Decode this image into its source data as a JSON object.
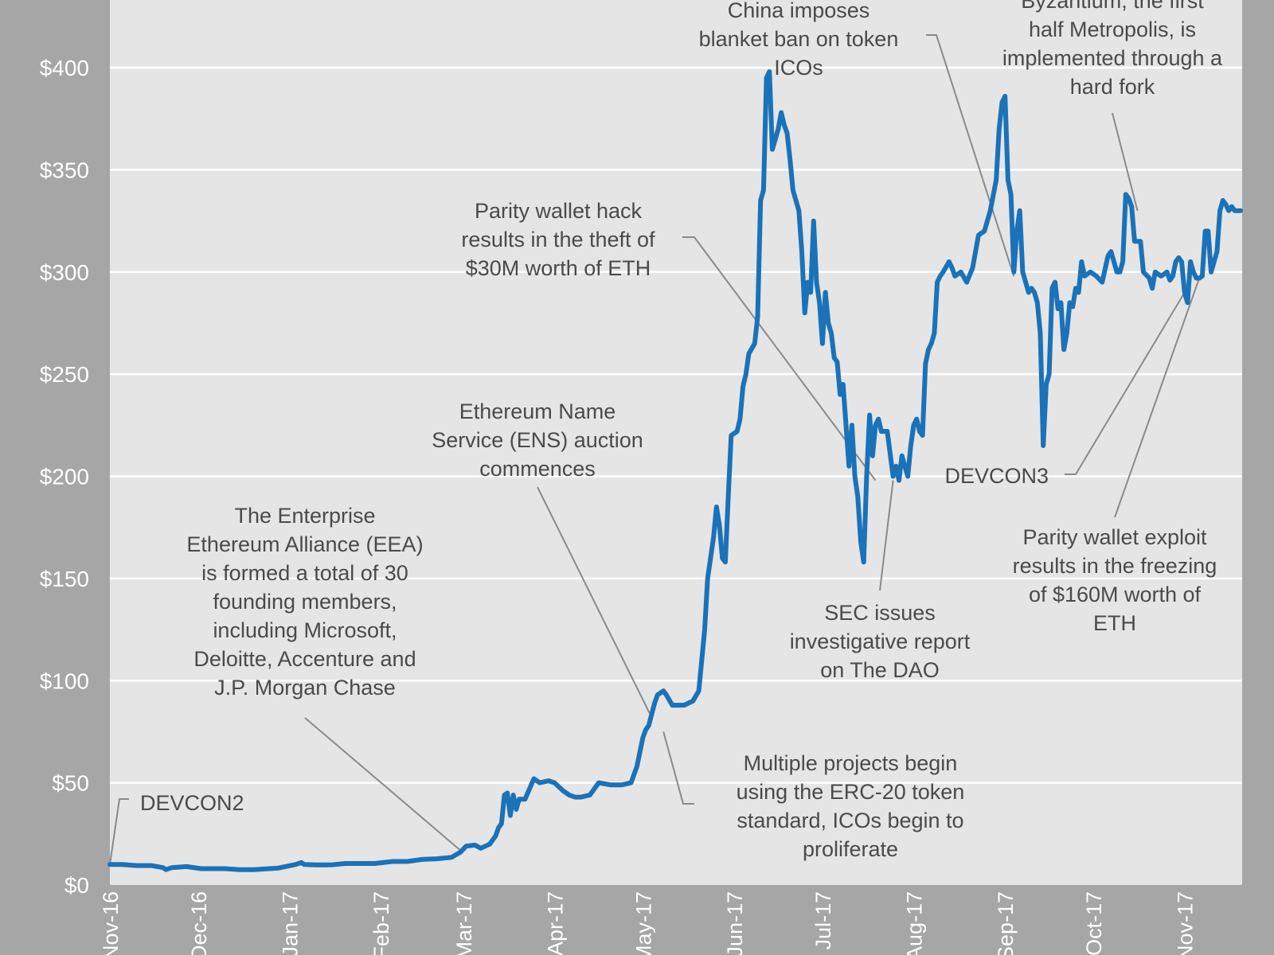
{
  "chart_data": {
    "type": "line",
    "title": "",
    "xlabel": "",
    "ylabel": "",
    "ylim": [
      0,
      430
    ],
    "xlim": [
      "2016-11-01",
      "2017-11-20"
    ],
    "grid": true,
    "yticks": [
      {
        "value": 0,
        "label": "$0"
      },
      {
        "value": 50,
        "label": "$50"
      },
      {
        "value": 100,
        "label": "$100"
      },
      {
        "value": 150,
        "label": "$150"
      },
      {
        "value": 200,
        "label": "$200"
      },
      {
        "value": 250,
        "label": "$250"
      },
      {
        "value": 300,
        "label": "$300"
      },
      {
        "value": 350,
        "label": "$350"
      },
      {
        "value": 400,
        "label": "$400"
      }
    ],
    "xticks": [
      {
        "date": "2016-11-01",
        "label": "Nov-16"
      },
      {
        "date": "2016-12-01",
        "label": "Dec-16"
      },
      {
        "date": "2017-01-01",
        "label": "Jan-17"
      },
      {
        "date": "2017-02-01",
        "label": "Feb-17"
      },
      {
        "date": "2017-03-01",
        "label": "Mar-17"
      },
      {
        "date": "2017-04-01",
        "label": "Apr-17"
      },
      {
        "date": "2017-05-01",
        "label": "May-17"
      },
      {
        "date": "2017-06-01",
        "label": "Jun-17"
      },
      {
        "date": "2017-07-01",
        "label": "Jul-17"
      },
      {
        "date": "2017-08-01",
        "label": "Aug-17"
      },
      {
        "date": "2017-09-01",
        "label": "Sep-17"
      },
      {
        "date": "2017-10-01",
        "label": "Oct-17"
      },
      {
        "date": "2017-11-01",
        "label": "Nov-17"
      }
    ],
    "series": [
      {
        "color": "#1a72b8",
        "points": [
          [
            "2016-11-01",
            10
          ],
          [
            "2016-11-05",
            10
          ],
          [
            "2016-11-10",
            9.5
          ],
          [
            "2016-11-15",
            9.5
          ],
          [
            "2016-11-19",
            8.5
          ],
          [
            "2016-11-20",
            7.5
          ],
          [
            "2016-11-22",
            8.5
          ],
          [
            "2016-11-27",
            9
          ],
          [
            "2016-12-02",
            8
          ],
          [
            "2016-12-10",
            8
          ],
          [
            "2016-12-15",
            7.5
          ],
          [
            "2016-12-20",
            7.5
          ],
          [
            "2016-12-25",
            8
          ],
          [
            "2016-12-28",
            8.2
          ],
          [
            "2017-01-03",
            10
          ],
          [
            "2017-01-05",
            11
          ],
          [
            "2017-01-06",
            10
          ],
          [
            "2017-01-10",
            9.8
          ],
          [
            "2017-01-15",
            9.8
          ],
          [
            "2017-01-20",
            10.5
          ],
          [
            "2017-01-25",
            10.5
          ],
          [
            "2017-01-30",
            10.5
          ],
          [
            "2017-02-05",
            11.5
          ],
          [
            "2017-02-10",
            11.5
          ],
          [
            "2017-02-15",
            12.5
          ],
          [
            "2017-02-20",
            12.8
          ],
          [
            "2017-02-25",
            13.5
          ],
          [
            "2017-02-28",
            16
          ],
          [
            "2017-03-02",
            19
          ],
          [
            "2017-03-05",
            19.5
          ],
          [
            "2017-03-07",
            18
          ],
          [
            "2017-03-10",
            20
          ],
          [
            "2017-03-12",
            24
          ],
          [
            "2017-03-13",
            28
          ],
          [
            "2017-03-14",
            30
          ],
          [
            "2017-03-15",
            44
          ],
          [
            "2017-03-16",
            45
          ],
          [
            "2017-03-17",
            34
          ],
          [
            "2017-03-18",
            44
          ],
          [
            "2017-03-19",
            37
          ],
          [
            "2017-03-20",
            42
          ],
          [
            "2017-03-22",
            42
          ],
          [
            "2017-03-25",
            52
          ],
          [
            "2017-03-27",
            50
          ],
          [
            "2017-03-30",
            51
          ],
          [
            "2017-04-01",
            50
          ],
          [
            "2017-04-04",
            46
          ],
          [
            "2017-04-06",
            44
          ],
          [
            "2017-04-08",
            43
          ],
          [
            "2017-04-10",
            43
          ],
          [
            "2017-04-13",
            44
          ],
          [
            "2017-04-16",
            50
          ],
          [
            "2017-04-20",
            49
          ],
          [
            "2017-04-24",
            49
          ],
          [
            "2017-04-27",
            50
          ],
          [
            "2017-04-29",
            58
          ],
          [
            "2017-05-01",
            72
          ],
          [
            "2017-05-02",
            76
          ],
          [
            "2017-05-03",
            78
          ],
          [
            "2017-05-05",
            89
          ],
          [
            "2017-05-06",
            93
          ],
          [
            "2017-05-08",
            95
          ],
          [
            "2017-05-09",
            93
          ],
          [
            "2017-05-11",
            88
          ],
          [
            "2017-05-15",
            88
          ],
          [
            "2017-05-18",
            90
          ],
          [
            "2017-05-20",
            95
          ],
          [
            "2017-05-22",
            125
          ],
          [
            "2017-05-23",
            150
          ],
          [
            "2017-05-24",
            160
          ],
          [
            "2017-05-25",
            170
          ],
          [
            "2017-05-26",
            185
          ],
          [
            "2017-05-27",
            176
          ],
          [
            "2017-05-28",
            160
          ],
          [
            "2017-05-29",
            158
          ],
          [
            "2017-05-30",
            190
          ],
          [
            "2017-05-31",
            220
          ],
          [
            "2017-06-02",
            222
          ],
          [
            "2017-06-03",
            228
          ],
          [
            "2017-06-04",
            244
          ],
          [
            "2017-06-05",
            250
          ],
          [
            "2017-06-06",
            260
          ],
          [
            "2017-06-08",
            265
          ],
          [
            "2017-06-09",
            278
          ],
          [
            "2017-06-10",
            335
          ],
          [
            "2017-06-11",
            340
          ],
          [
            "2017-06-12",
            395
          ],
          [
            "2017-06-13",
            398
          ],
          [
            "2017-06-14",
            360
          ],
          [
            "2017-06-15",
            365
          ],
          [
            "2017-06-16",
            370
          ],
          [
            "2017-06-17",
            378
          ],
          [
            "2017-06-18",
            372
          ],
          [
            "2017-06-19",
            368
          ],
          [
            "2017-06-20",
            355
          ],
          [
            "2017-06-21",
            340
          ],
          [
            "2017-06-22",
            335
          ],
          [
            "2017-06-23",
            330
          ],
          [
            "2017-06-24",
            310
          ],
          [
            "2017-06-25",
            280
          ],
          [
            "2017-06-26",
            295
          ],
          [
            "2017-06-27",
            290
          ],
          [
            "2017-06-28",
            325
          ],
          [
            "2017-06-29",
            295
          ],
          [
            "2017-06-30",
            285
          ],
          [
            "2017-07-01",
            265
          ],
          [
            "2017-07-02",
            290
          ],
          [
            "2017-07-03",
            275
          ],
          [
            "2017-07-04",
            270
          ],
          [
            "2017-07-05",
            258
          ],
          [
            "2017-07-06",
            256
          ],
          [
            "2017-07-07",
            240
          ],
          [
            "2017-07-08",
            245
          ],
          [
            "2017-07-09",
            225
          ],
          [
            "2017-07-10",
            205
          ],
          [
            "2017-07-11",
            225
          ],
          [
            "2017-07-12",
            200
          ],
          [
            "2017-07-13",
            190
          ],
          [
            "2017-07-14",
            168
          ],
          [
            "2017-07-15",
            158
          ],
          [
            "2017-07-16",
            200
          ],
          [
            "2017-07-17",
            230
          ],
          [
            "2017-07-18",
            210
          ],
          [
            "2017-07-19",
            225
          ],
          [
            "2017-07-20",
            228
          ],
          [
            "2017-07-21",
            222
          ],
          [
            "2017-07-23",
            222
          ],
          [
            "2017-07-25",
            200
          ],
          [
            "2017-07-26",
            205
          ],
          [
            "2017-07-27",
            198
          ],
          [
            "2017-07-28",
            210
          ],
          [
            "2017-07-29",
            205
          ],
          [
            "2017-07-30",
            200
          ],
          [
            "2017-07-31",
            215
          ],
          [
            "2017-08-01",
            225
          ],
          [
            "2017-08-02",
            228
          ],
          [
            "2017-08-03",
            222
          ],
          [
            "2017-08-04",
            220
          ],
          [
            "2017-08-05",
            255
          ],
          [
            "2017-08-06",
            262
          ],
          [
            "2017-08-07",
            265
          ],
          [
            "2017-08-08",
            270
          ],
          [
            "2017-08-09",
            295
          ],
          [
            "2017-08-10",
            298
          ],
          [
            "2017-08-11",
            300
          ],
          [
            "2017-08-13",
            305
          ],
          [
            "2017-08-14",
            302
          ],
          [
            "2017-08-15",
            298
          ],
          [
            "2017-08-17",
            300
          ],
          [
            "2017-08-19",
            295
          ],
          [
            "2017-08-21",
            302
          ],
          [
            "2017-08-23",
            318
          ],
          [
            "2017-08-25",
            320
          ],
          [
            "2017-08-27",
            330
          ],
          [
            "2017-08-29",
            345
          ],
          [
            "2017-08-30",
            370
          ],
          [
            "2017-08-31",
            383
          ],
          [
            "2017-09-01",
            386
          ],
          [
            "2017-09-02",
            345
          ],
          [
            "2017-09-03",
            338
          ],
          [
            "2017-09-04",
            300
          ],
          [
            "2017-09-05",
            320
          ],
          [
            "2017-09-06",
            330
          ],
          [
            "2017-09-07",
            300
          ],
          [
            "2017-09-08",
            295
          ],
          [
            "2017-09-09",
            290
          ],
          [
            "2017-09-10",
            292
          ],
          [
            "2017-09-11",
            290
          ],
          [
            "2017-09-12",
            285
          ],
          [
            "2017-09-13",
            270
          ],
          [
            "2017-09-14",
            215
          ],
          [
            "2017-09-15",
            245
          ],
          [
            "2017-09-16",
            250
          ],
          [
            "2017-09-17",
            292
          ],
          [
            "2017-09-18",
            295
          ],
          [
            "2017-09-19",
            282
          ],
          [
            "2017-09-20",
            285
          ],
          [
            "2017-09-21",
            262
          ],
          [
            "2017-09-22",
            270
          ],
          [
            "2017-09-23",
            285
          ],
          [
            "2017-09-24",
            283
          ],
          [
            "2017-09-25",
            292
          ],
          [
            "2017-09-26",
            290
          ],
          [
            "2017-09-27",
            305
          ],
          [
            "2017-09-28",
            298
          ],
          [
            "2017-09-30",
            300
          ],
          [
            "2017-10-02",
            298
          ],
          [
            "2017-10-04",
            295
          ],
          [
            "2017-10-06",
            308
          ],
          [
            "2017-10-07",
            310
          ],
          [
            "2017-10-09",
            300
          ],
          [
            "2017-10-10",
            300
          ],
          [
            "2017-10-11",
            305
          ],
          [
            "2017-10-12",
            338
          ],
          [
            "2017-10-13",
            336
          ],
          [
            "2017-10-14",
            332
          ],
          [
            "2017-10-15",
            315
          ],
          [
            "2017-10-17",
            315
          ],
          [
            "2017-10-18",
            300
          ],
          [
            "2017-10-20",
            297
          ],
          [
            "2017-10-21",
            292
          ],
          [
            "2017-10-22",
            300
          ],
          [
            "2017-10-24",
            298
          ],
          [
            "2017-10-26",
            300
          ],
          [
            "2017-10-27",
            296
          ],
          [
            "2017-10-28",
            298
          ],
          [
            "2017-10-29",
            305
          ],
          [
            "2017-10-30",
            307
          ],
          [
            "2017-10-31",
            305
          ],
          [
            "2017-11-01",
            290
          ],
          [
            "2017-11-02",
            285
          ],
          [
            "2017-11-03",
            305
          ],
          [
            "2017-11-04",
            300
          ],
          [
            "2017-11-05",
            297
          ],
          [
            "2017-11-06",
            297
          ],
          [
            "2017-11-07",
            298
          ],
          [
            "2017-11-08",
            320
          ],
          [
            "2017-11-09",
            320
          ],
          [
            "2017-11-10",
            300
          ],
          [
            "2017-11-11",
            305
          ],
          [
            "2017-11-12",
            310
          ],
          [
            "2017-11-13",
            330
          ],
          [
            "2017-11-14",
            335
          ],
          [
            "2017-11-15",
            333
          ],
          [
            "2017-11-16",
            330
          ],
          [
            "2017-11-17",
            332
          ],
          [
            "2017-11-18",
            330
          ],
          [
            "2017-11-19",
            330
          ],
          [
            "2017-11-20",
            330
          ]
        ]
      }
    ],
    "annotations": [
      {
        "id": "devcon2",
        "lines": [
          "DEVCON2"
        ],
        "date": "2016-11-01",
        "value": 10,
        "anchor": "start"
      },
      {
        "id": "eea",
        "lines": [
          "The Enterprise",
          "Ethereum Alliance (EEA)",
          "is formed a total of 30",
          "founding members,",
          "including Microsoft,",
          "Deloitte, Accenture and",
          "J.P. Morgan Chase"
        ],
        "date": "2017-02-28",
        "value": 17,
        "anchor": "middle"
      },
      {
        "id": "ens",
        "lines": [
          "Ethereum Name",
          "Service (ENS) auction",
          "commences"
        ],
        "date": "2017-05-04",
        "value": 82,
        "anchor": "middle"
      },
      {
        "id": "erc20",
        "lines": [
          "Multiple projects begin",
          "using the ERC-20 token",
          "standard, ICOs begin to",
          "proliferate"
        ],
        "date": "2017-05-08",
        "value": 75,
        "anchor": "middle"
      },
      {
        "id": "china",
        "lines": [
          "China imposes",
          "blanket ban on token",
          "ICOs"
        ],
        "date": "2017-09-04",
        "value": 298,
        "anchor": "middle"
      },
      {
        "id": "parity-hack",
        "lines": [
          "Parity wallet hack",
          "results in the theft of",
          "$30M worth of ETH"
        ],
        "date": "2017-07-19",
        "value": 198,
        "anchor": "middle"
      },
      {
        "id": "byzantium",
        "lines": [
          "Byzantium, the first",
          "half Metropolis, is",
          "implemented through a",
          "hard fork"
        ],
        "date": "2017-10-16",
        "value": 330,
        "anchor": "middle"
      },
      {
        "id": "sec",
        "lines": [
          "SEC issues",
          "investigative report",
          "on The DAO"
        ],
        "date": "2017-07-25",
        "value": 198,
        "anchor": "middle"
      },
      {
        "id": "devcon3",
        "lines": [
          "DEVCON3"
        ],
        "date": "2017-11-01",
        "value": 290,
        "anchor": "end"
      },
      {
        "id": "parity-exploit",
        "lines": [
          "Parity wallet exploit",
          "results in the freezing",
          "of $160M worth of",
          "ETH"
        ],
        "date": "2017-11-06",
        "value": 297,
        "anchor": "middle"
      }
    ]
  }
}
